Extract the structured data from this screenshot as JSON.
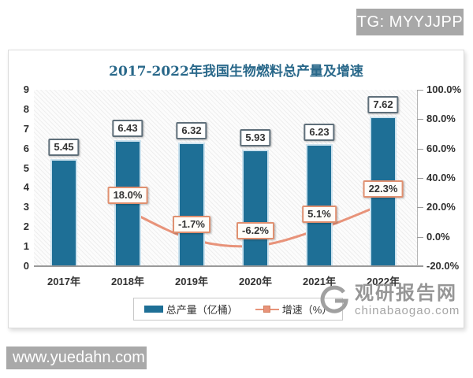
{
  "badge": {
    "text": "TG: MYYJJPP",
    "bg": "#a8a8a8"
  },
  "footer_watermark": {
    "text": "www.yuedahn.com",
    "bg": "#a9a9a9"
  },
  "site_watermark": {
    "name": "观研报告网",
    "domain": "chinabaogao.com"
  },
  "colors": {
    "bar": "#1e6f96",
    "line": "#e8937a",
    "line_marker_border": "#d3805e",
    "title": "#29688a"
  },
  "chart_data": {
    "type": "bar",
    "title": "2017-2022年我国生物燃料总产量及增速",
    "categories": [
      "2017年",
      "2018年",
      "2019年",
      "2020年",
      "2021年",
      "2022年"
    ],
    "series": [
      {
        "name": "总产量（亿桶）",
        "type": "bar",
        "axis": "left",
        "color": "#1e6f96",
        "values": [
          5.45,
          6.43,
          6.32,
          5.93,
          6.23,
          7.62
        ],
        "labels": [
          "5.45",
          "6.43",
          "6.32",
          "5.93",
          "6.23",
          "7.62"
        ]
      },
      {
        "name": "增速（%）",
        "type": "line",
        "axis": "right",
        "color": "#e8937a",
        "values": [
          null,
          18.0,
          -1.7,
          -6.2,
          5.1,
          22.3
        ],
        "labels": [
          "",
          "18.0%",
          "-1.7%",
          "-6.2%",
          "5.1%",
          "22.3%"
        ]
      }
    ],
    "left_axis": {
      "min": 0,
      "max": 9,
      "step": 1,
      "ticks": [
        "9",
        "8",
        "7",
        "6",
        "5",
        "4",
        "3",
        "2",
        "1",
        "0"
      ]
    },
    "right_axis": {
      "min": -20,
      "max": 100,
      "step": 20,
      "ticks": [
        "100.0%",
        "80.0%",
        "60.0%",
        "40.0%",
        "20.0%",
        "0.0%",
        "-20.0%"
      ]
    },
    "legend_position": "bottom",
    "grid": false
  }
}
